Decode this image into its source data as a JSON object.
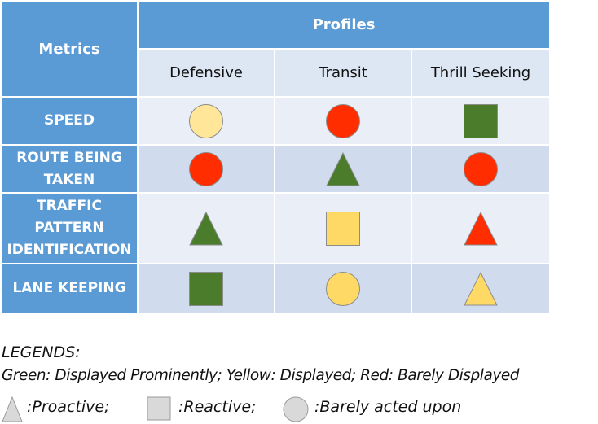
{
  "table": {
    "metrics_header": "Metrics",
    "profiles_header": "Profiles",
    "profiles": [
      "Defensive",
      "Transit",
      "Thrill Seeking"
    ],
    "rows": [
      {
        "label_lines": [
          "SPEED"
        ],
        "cells": [
          {
            "shape": "circle",
            "color": "#ffe699"
          },
          {
            "shape": "circle",
            "color": "#ff2d00"
          },
          {
            "shape": "square",
            "color": "#4a7c2c"
          }
        ]
      },
      {
        "label_lines": [
          "ROUTE BEING",
          "TAKEN"
        ],
        "cells": [
          {
            "shape": "circle",
            "color": "#ff2d00"
          },
          {
            "shape": "triangle",
            "color": "#4a7c2c"
          },
          {
            "shape": "circle",
            "color": "#ff2d00"
          }
        ]
      },
      {
        "label_lines": [
          "TRAFFIC",
          "PATTERN",
          "IDENTIFICATION"
        ],
        "cells": [
          {
            "shape": "triangle",
            "color": "#4a7c2c"
          },
          {
            "shape": "square",
            "color": "#ffd966"
          },
          {
            "shape": "triangle",
            "color": "#ff2d00"
          }
        ]
      },
      {
        "label_lines": [
          "LANE KEEPING"
        ],
        "cells": [
          {
            "shape": "square",
            "color": "#4a7c2c"
          },
          {
            "shape": "circle",
            "color": "#ffd966"
          },
          {
            "shape": "triangle",
            "color": "#ffd966"
          }
        ]
      }
    ]
  },
  "legend": {
    "title": "LEGENDS:",
    "colors_line": "Green: Displayed Prominently; Yellow: Displayed; Red: Barely Displayed",
    "shapes": [
      {
        "shape": "triangle",
        "label": ":Proactive;"
      },
      {
        "shape": "square",
        "label": ":Reactive;"
      },
      {
        "shape": "circle",
        "label": ":Barely acted upon"
      }
    ],
    "legend_shape_color": "#d9d9d9"
  }
}
